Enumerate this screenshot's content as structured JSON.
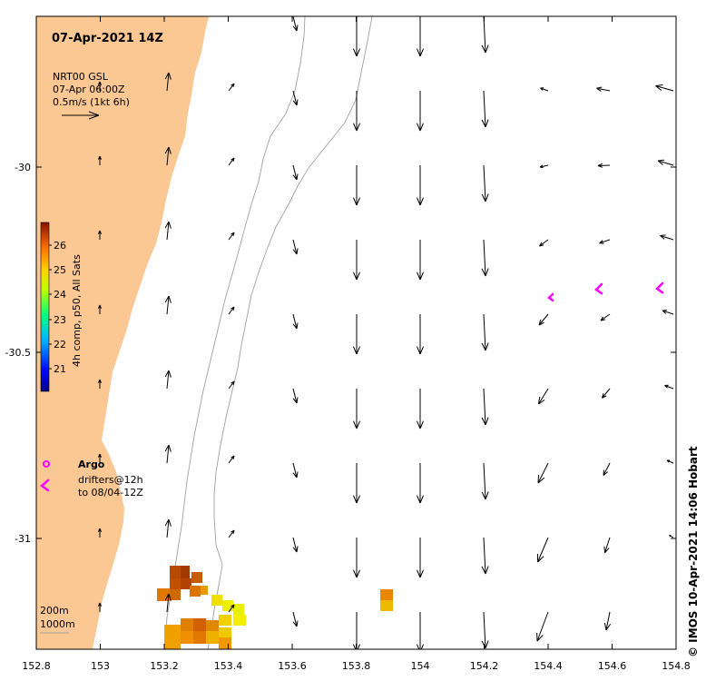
{
  "map": {
    "title": "07-Apr-2021 14Z",
    "lon_range": [
      152.8,
      154.8
    ],
    "lat_range": [
      -31.3,
      -29.6
    ],
    "x_ticks": [
      "152.8",
      "153",
      "153.2",
      "153.4",
      "153.6",
      "153.8",
      "154",
      "154.2",
      "154.4",
      "154.6",
      "154.8"
    ],
    "y_ticks": [
      "-30",
      "-30.5",
      "-31"
    ],
    "land_color": "#fbc894",
    "current_legend": {
      "line1": "NRT00 GSL",
      "line2": "07-Apr 06:00Z",
      "line3": "0.5m/s (1kt 6h)"
    },
    "colorbar": {
      "label": "4h comp, p50, All Sats",
      "ticks": [
        "26",
        "25",
        "24",
        "23",
        "22",
        "21"
      ]
    },
    "argo_label": "Argo",
    "drifters": {
      "line1": "drifters@12h",
      "line2": "to 08/04-12Z"
    },
    "depth_contours": {
      "line1": "200m",
      "line2": "1000m"
    },
    "drifter_color": "#ff00ff",
    "credit": "© IMOS 10-Apr-2021 14:06 Hobart"
  }
}
